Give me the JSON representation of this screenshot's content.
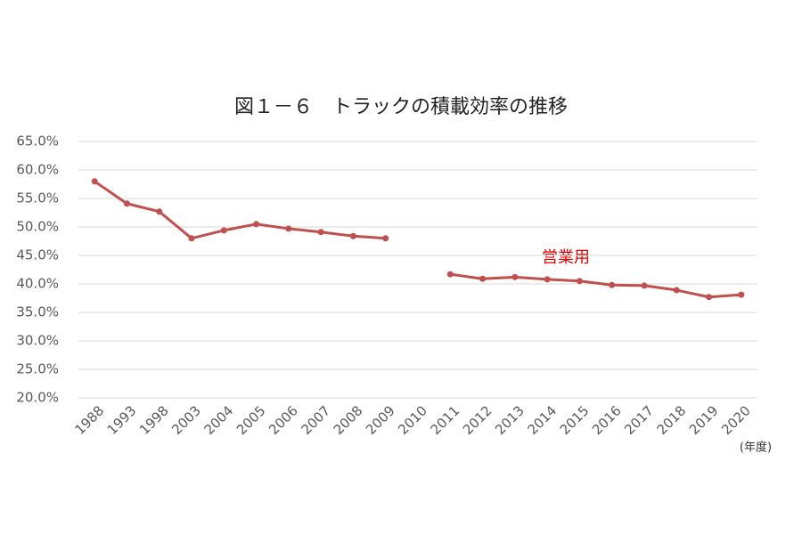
{
  "chart_data": {
    "type": "line",
    "title": "図１－６　トラックの積載効率の推移",
    "x_unit_label": "(年度)",
    "annotation": "営業用",
    "categories": [
      "1988",
      "1993",
      "1998",
      "2003",
      "2004",
      "2005",
      "2006",
      "2007",
      "2008",
      "2009",
      "2010",
      "2011",
      "2012",
      "2013",
      "2014",
      "2015",
      "2016",
      "2017",
      "2018",
      "2019",
      "2020"
    ],
    "series": [
      {
        "name": "営業用",
        "color": "#c0504d",
        "values": [
          58.0,
          54.1,
          52.7,
          48.0,
          49.4,
          50.5,
          49.7,
          49.1,
          48.4,
          48.0,
          null,
          41.7,
          40.9,
          41.2,
          40.8,
          40.5,
          39.8,
          39.7,
          38.9,
          37.7,
          38.1
        ]
      }
    ],
    "ylim": [
      20,
      65
    ],
    "yticks": [
      {
        "value": 20,
        "label": "20.0%"
      },
      {
        "value": 25,
        "label": "25.0%"
      },
      {
        "value": 30,
        "label": "30.0%"
      },
      {
        "value": 35,
        "label": "35.0%"
      },
      {
        "value": 40,
        "label": "40.0%"
      },
      {
        "value": 45,
        "label": "45.0%"
      },
      {
        "value": 50,
        "label": "50.0%"
      },
      {
        "value": 55,
        "label": "55.0%"
      },
      {
        "value": 60,
        "label": "60.0%"
      },
      {
        "value": 65,
        "label": "65.0%"
      }
    ],
    "grid": true
  }
}
